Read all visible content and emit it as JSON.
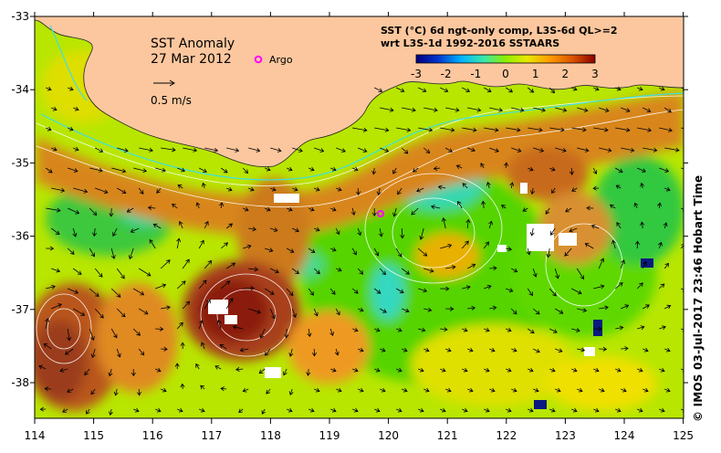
{
  "map": {
    "title_line1": "SST Anomaly",
    "title_line2": "27 Mar 2012",
    "argo_label": "Argo",
    "vector_scale_label": "0.5 m/s",
    "product_line1": "SST (°C) 6d ngt-only comp, L3S-6d QL>=2",
    "product_line2": "wrt L3S-1d 1992-2016 SSTAARS",
    "colorbar_ticks": [
      "-3",
      "-2",
      "-1",
      "0",
      "1",
      "2",
      "3"
    ],
    "credit": "© IMOS 03-Jul-2017 23:46 Hobart Time",
    "lon_ticks": [
      "114",
      "115",
      "116",
      "117",
      "118",
      "119",
      "120",
      "121",
      "122",
      "123",
      "124",
      "125"
    ],
    "lat_ticks": [
      "-33",
      "-34",
      "-35",
      "-36",
      "-37",
      "-38"
    ]
  },
  "colors": {
    "land": "#fcc79e",
    "colorbar": [
      "#00007f",
      "#0033cc",
      "#00b3ff",
      "#38e8a8",
      "#90ee00",
      "#e8e800",
      "#ff9a00",
      "#d85000",
      "#8b0000"
    ],
    "argo_marker": "#ff00ff"
  }
}
